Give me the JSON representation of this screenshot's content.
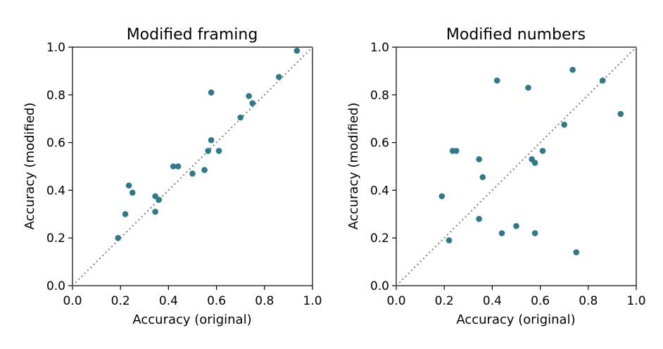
{
  "chart_data": [
    {
      "type": "scatter",
      "title": "Modified framing",
      "xlabel": "Accuracy (original)",
      "ylabel": "Accuracy (modified)",
      "xlim": [
        0.0,
        1.0
      ],
      "ylim": [
        0.0,
        1.0
      ],
      "xticks": [
        "0.0",
        "0.2",
        "0.4",
        "0.6",
        "0.8",
        "1.0"
      ],
      "yticks": [
        "0.0",
        "0.2",
        "0.4",
        "0.6",
        "0.8",
        "1.0"
      ],
      "diagonal": "y = x, dotted gray",
      "grid": false,
      "marker_color": "#2e7a8c",
      "points": [
        {
          "x": 0.19,
          "y": 0.2
        },
        {
          "x": 0.22,
          "y": 0.3
        },
        {
          "x": 0.235,
          "y": 0.42
        },
        {
          "x": 0.25,
          "y": 0.39
        },
        {
          "x": 0.345,
          "y": 0.375
        },
        {
          "x": 0.345,
          "y": 0.31
        },
        {
          "x": 0.36,
          "y": 0.36
        },
        {
          "x": 0.42,
          "y": 0.5
        },
        {
          "x": 0.44,
          "y": 0.5
        },
        {
          "x": 0.5,
          "y": 0.47
        },
        {
          "x": 0.55,
          "y": 0.485
        },
        {
          "x": 0.565,
          "y": 0.565
        },
        {
          "x": 0.578,
          "y": 0.61
        },
        {
          "x": 0.578,
          "y": 0.81
        },
        {
          "x": 0.61,
          "y": 0.565
        },
        {
          "x": 0.7,
          "y": 0.705
        },
        {
          "x": 0.735,
          "y": 0.795
        },
        {
          "x": 0.75,
          "y": 0.765
        },
        {
          "x": 0.86,
          "y": 0.875
        },
        {
          "x": 0.935,
          "y": 0.985
        }
      ]
    },
    {
      "type": "scatter",
      "title": "Modified numbers",
      "xlabel": "Accuracy (original)",
      "ylabel": "Accuracy (modified)",
      "xlim": [
        0.0,
        1.0
      ],
      "ylim": [
        0.0,
        1.0
      ],
      "xticks": [
        "0.0",
        "0.2",
        "0.4",
        "0.6",
        "0.8",
        "1.0"
      ],
      "yticks": [
        "0.0",
        "0.2",
        "0.4",
        "0.6",
        "0.8",
        "1.0"
      ],
      "diagonal": "y = x, dotted gray",
      "grid": false,
      "marker_color": "#2e7a8c",
      "points": [
        {
          "x": 0.19,
          "y": 0.375
        },
        {
          "x": 0.22,
          "y": 0.19
        },
        {
          "x": 0.235,
          "y": 0.565
        },
        {
          "x": 0.25,
          "y": 0.565
        },
        {
          "x": 0.345,
          "y": 0.53
        },
        {
          "x": 0.345,
          "y": 0.28
        },
        {
          "x": 0.36,
          "y": 0.455
        },
        {
          "x": 0.42,
          "y": 0.86
        },
        {
          "x": 0.44,
          "y": 0.22
        },
        {
          "x": 0.5,
          "y": 0.25
        },
        {
          "x": 0.55,
          "y": 0.83
        },
        {
          "x": 0.565,
          "y": 0.53
        },
        {
          "x": 0.578,
          "y": 0.515
        },
        {
          "x": 0.578,
          "y": 0.22
        },
        {
          "x": 0.61,
          "y": 0.565
        },
        {
          "x": 0.7,
          "y": 0.675
        },
        {
          "x": 0.735,
          "y": 0.905
        },
        {
          "x": 0.75,
          "y": 0.14
        },
        {
          "x": 0.86,
          "y": 0.86
        },
        {
          "x": 0.935,
          "y": 0.72
        }
      ]
    }
  ]
}
